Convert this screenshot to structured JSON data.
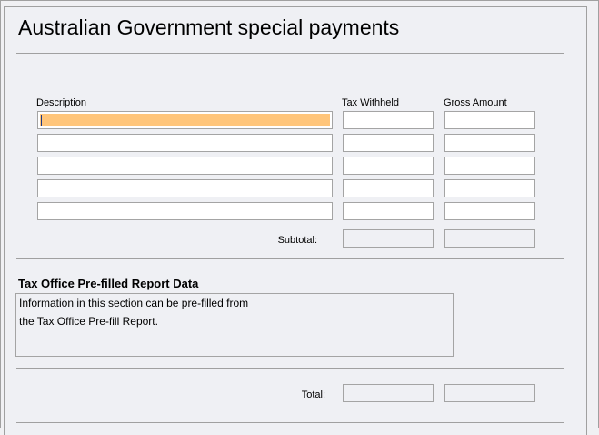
{
  "title": "Australian Government special payments",
  "columns": {
    "description": "Description",
    "tax_withheld": "Tax Withheld",
    "gross_amount": "Gross Amount"
  },
  "rows": [
    {
      "description": "",
      "tax_withheld": "",
      "gross_amount": ""
    },
    {
      "description": "",
      "tax_withheld": "",
      "gross_amount": ""
    },
    {
      "description": "",
      "tax_withheld": "",
      "gross_amount": ""
    },
    {
      "description": "",
      "tax_withheld": "",
      "gross_amount": ""
    },
    {
      "description": "",
      "tax_withheld": "",
      "gross_amount": ""
    }
  ],
  "subtotal": {
    "label": "Subtotal:",
    "tax_withheld": "",
    "gross_amount": ""
  },
  "prefill": {
    "heading": "Tax Office Pre-filled Report Data",
    "line1": "Information in this section can be pre-filled from",
    "line2": "the Tax Office Pre-fill Report."
  },
  "total": {
    "label": "Total:",
    "tax_withheld": "",
    "gross_amount": ""
  },
  "colors": {
    "focus_highlight": "#ffc57a",
    "background": "#eff0f4"
  }
}
